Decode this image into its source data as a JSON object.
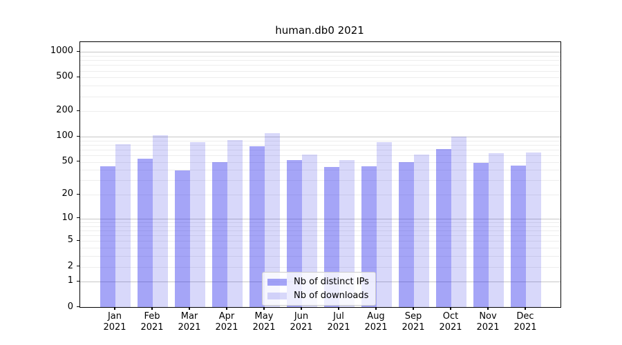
{
  "chart_data": {
    "type": "bar",
    "title": "human.db0 2021",
    "categories": [
      "Jan 2021",
      "Feb 2021",
      "Mar 2021",
      "Apr 2021",
      "May 2021",
      "Jun 2021",
      "Jul 2021",
      "Aug 2021",
      "Sep 2021",
      "Oct 2021",
      "Nov 2021",
      "Dec 2021"
    ],
    "series": [
      {
        "name": "Nb of distinct IPs",
        "color": "#2828eb",
        "alpha": 0.42,
        "values": [
          44,
          54,
          39,
          49,
          76,
          52,
          43,
          44,
          49,
          71,
          48,
          45
        ]
      },
      {
        "name": "Nb of downloads",
        "color": "#2828e6",
        "alpha": 0.18,
        "values": [
          81,
          103,
          85,
          90,
          110,
          61,
          52,
          85,
          61,
          100,
          63,
          64
        ]
      }
    ],
    "xlabel": "",
    "ylabel": "",
    "yscale": "log1p",
    "yticks": [
      0,
      1,
      2,
      5,
      10,
      20,
      50,
      100,
      200,
      500,
      1000
    ],
    "ylim": [
      0,
      1300
    ],
    "grid": {
      "orientation": "horizontal",
      "major_lines_at": [
        1,
        10,
        100,
        1000
      ],
      "minor_lines": "2-9 of each decade up to 900",
      "major_color": "#c6c6c6",
      "minor_color": "#ededed"
    },
    "legend_position": "lower center, inside plot"
  },
  "legend": {
    "items": [
      {
        "label": "Nb of distinct IPs"
      },
      {
        "label": "Nb of downloads"
      }
    ]
  }
}
